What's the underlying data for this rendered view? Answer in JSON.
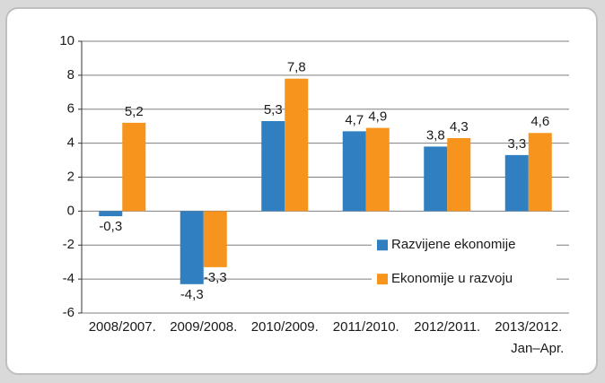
{
  "chart_data": {
    "type": "bar",
    "categories": [
      "2008/2007.",
      "2009/2008.",
      "2010/2009.",
      "2011/2010.",
      "2012/2011.",
      "2013/2012."
    ],
    "category_note": "Jan–Apr.",
    "series": [
      {
        "name": "Razvijene ekonomije",
        "color": "#2f7fc1",
        "values": [
          -0.3,
          -4.3,
          5.3,
          4.7,
          3.8,
          3.3
        ],
        "value_labels": [
          "-0,3",
          "-4,3",
          "5,3",
          "4,7",
          "3,8",
          "3,3"
        ]
      },
      {
        "name": "Ekonomije u razvoju",
        "color": "#f7941d",
        "values": [
          5.2,
          -3.3,
          7.8,
          4.9,
          4.3,
          4.6
        ],
        "value_labels": [
          "5,2",
          "-3,3",
          "7,8",
          "4,9",
          "4,3",
          "4,6"
        ]
      }
    ],
    "ylim": [
      -6,
      10
    ],
    "yticks": [
      -6,
      -4,
      -2,
      0,
      2,
      4,
      6,
      8,
      10
    ],
    "grid": true,
    "legend": "lower right"
  }
}
